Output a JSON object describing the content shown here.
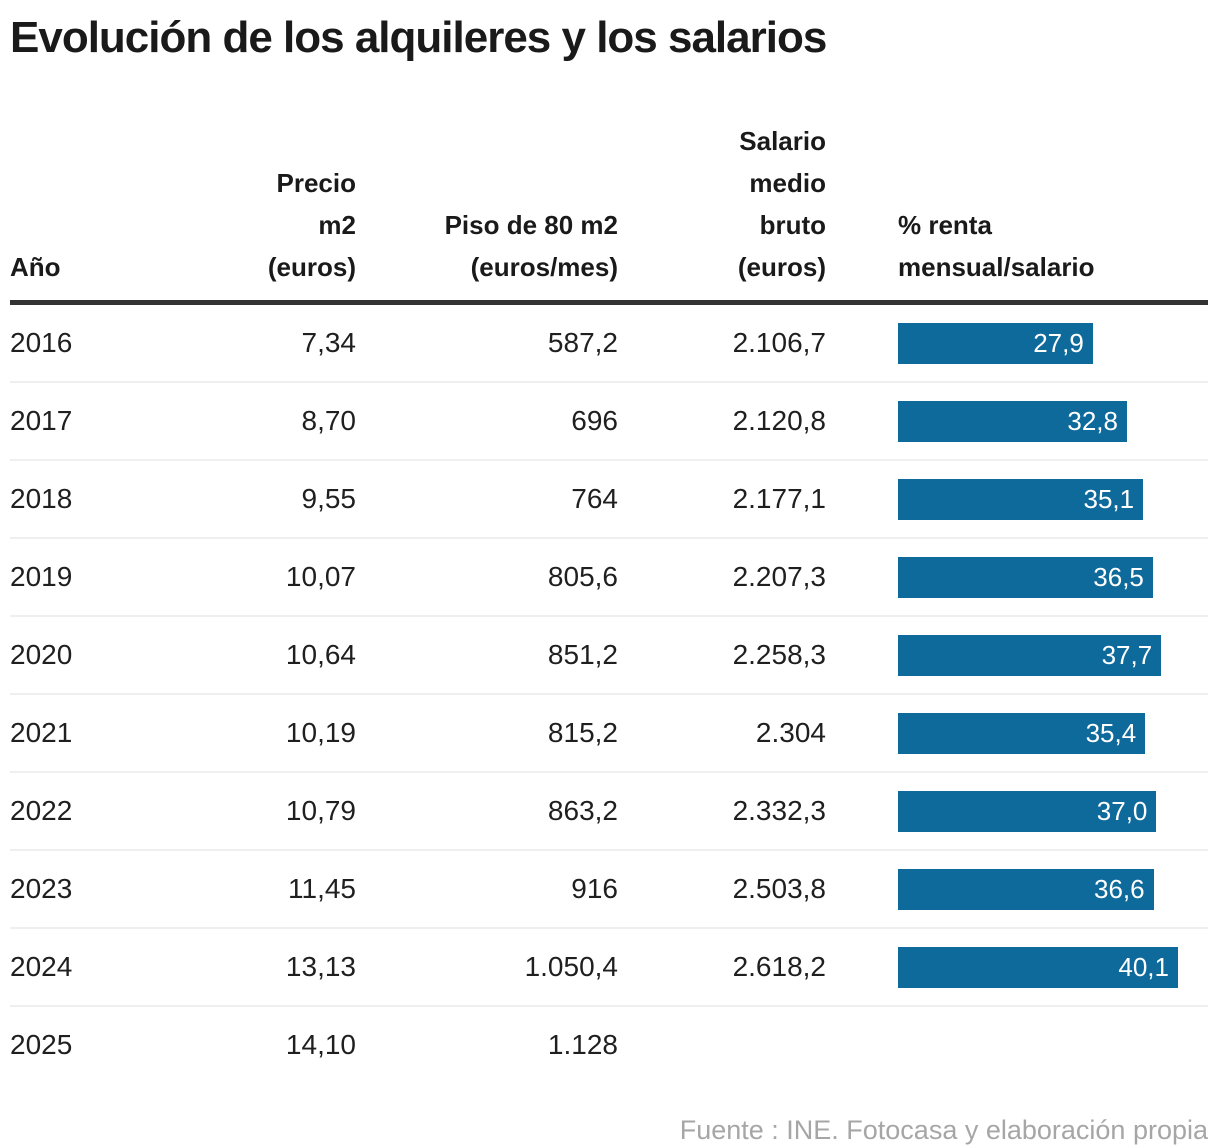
{
  "title": "Evolución de los alquileres y los salarios",
  "source_note": "Fuente : INE. Fotocasa y elaboración propia",
  "colors": {
    "bar_fill": "#0f6a9c",
    "bar_label": "#ffffff",
    "header_rule": "#333333",
    "row_separator": "#efefef",
    "title_text": "#1a1a1a",
    "body_text": "#1f1f1f",
    "source_text": "#a6a6a6"
  },
  "table": {
    "headers": {
      "year": "Año",
      "price_m2": "Precio\nm2\n(euros)",
      "flat_80m2": "Piso de 80 m2\n(euros/mes)",
      "gross_salary": "Salario\nmedio\nbruto\n(euros)",
      "rent_pct": "% renta\nmensual/salario"
    },
    "rows": [
      {
        "year": "2016",
        "price_m2": "7,34",
        "flat_80m2": "587,2",
        "gross_salary": "2.106,7",
        "rent_pct_label": "27,9",
        "rent_pct_value": 27.9
      },
      {
        "year": "2017",
        "price_m2": "8,70",
        "flat_80m2": "696",
        "gross_salary": "2.120,8",
        "rent_pct_label": "32,8",
        "rent_pct_value": 32.8
      },
      {
        "year": "2018",
        "price_m2": "9,55",
        "flat_80m2": "764",
        "gross_salary": "2.177,1",
        "rent_pct_label": "35,1",
        "rent_pct_value": 35.1
      },
      {
        "year": "2019",
        "price_m2": "10,07",
        "flat_80m2": "805,6",
        "gross_salary": "2.207,3",
        "rent_pct_label": "36,5",
        "rent_pct_value": 36.5
      },
      {
        "year": "2020",
        "price_m2": "10,64",
        "flat_80m2": "851,2",
        "gross_salary": "2.258,3",
        "rent_pct_label": "37,7",
        "rent_pct_value": 37.7
      },
      {
        "year": "2021",
        "price_m2": "10,19",
        "flat_80m2": "815,2",
        "gross_salary": "2.304",
        "rent_pct_label": "35,4",
        "rent_pct_value": 35.4
      },
      {
        "year": "2022",
        "price_m2": "10,79",
        "flat_80m2": "863,2",
        "gross_salary": "2.332,3",
        "rent_pct_label": "37,0",
        "rent_pct_value": 37.0
      },
      {
        "year": "2023",
        "price_m2": "11,45",
        "flat_80m2": "916",
        "gross_salary": "2.503,8",
        "rent_pct_label": "36,6",
        "rent_pct_value": 36.6
      },
      {
        "year": "2024",
        "price_m2": "13,13",
        "flat_80m2": "1.050,4",
        "gross_salary": "2.618,2",
        "rent_pct_label": "40,1",
        "rent_pct_value": 40.1
      },
      {
        "year": "2025",
        "price_m2": "14,10",
        "flat_80m2": "1.128",
        "gross_salary": "",
        "rent_pct_label": null,
        "rent_pct_value": null
      }
    ]
  },
  "chart_data": {
    "type": "table",
    "title": "Evolución de los alquileres y los salarios",
    "columns": [
      "Año",
      "Precio m2 (euros)",
      "Piso de 80 m2 (euros/mes)",
      "Salario medio bruto (euros)",
      "% renta mensual/salario"
    ],
    "rows": [
      [
        2016,
        7.34,
        587.2,
        2106.7,
        27.9
      ],
      [
        2017,
        8.7,
        696,
        2120.8,
        32.8
      ],
      [
        2018,
        9.55,
        764,
        2177.1,
        35.1
      ],
      [
        2019,
        10.07,
        805.6,
        2207.3,
        36.5
      ],
      [
        2020,
        10.64,
        851.2,
        2258.3,
        37.7
      ],
      [
        2021,
        10.19,
        815.2,
        2304,
        35.4
      ],
      [
        2022,
        10.79,
        863.2,
        2332.3,
        37.0
      ],
      [
        2023,
        11.45,
        916,
        2503.8,
        36.6
      ],
      [
        2024,
        13.13,
        1050.4,
        2618.2,
        40.1
      ],
      [
        2025,
        14.1,
        1128,
        null,
        null
      ]
    ],
    "bar_column": {
      "type": "bar",
      "name": "% renta mensual/salario",
      "orientation": "horizontal",
      "categories": [
        2016,
        2017,
        2018,
        2019,
        2020,
        2021,
        2022,
        2023,
        2024
      ],
      "values": [
        27.9,
        32.8,
        35.1,
        36.5,
        37.7,
        35.4,
        37.0,
        36.6,
        40.1
      ],
      "xlim": [
        0,
        40.1
      ],
      "labels_inside_bars": true,
      "grid": false,
      "legend": false
    },
    "source": "Fuente : INE. Fotocasa y elaboración propia"
  }
}
